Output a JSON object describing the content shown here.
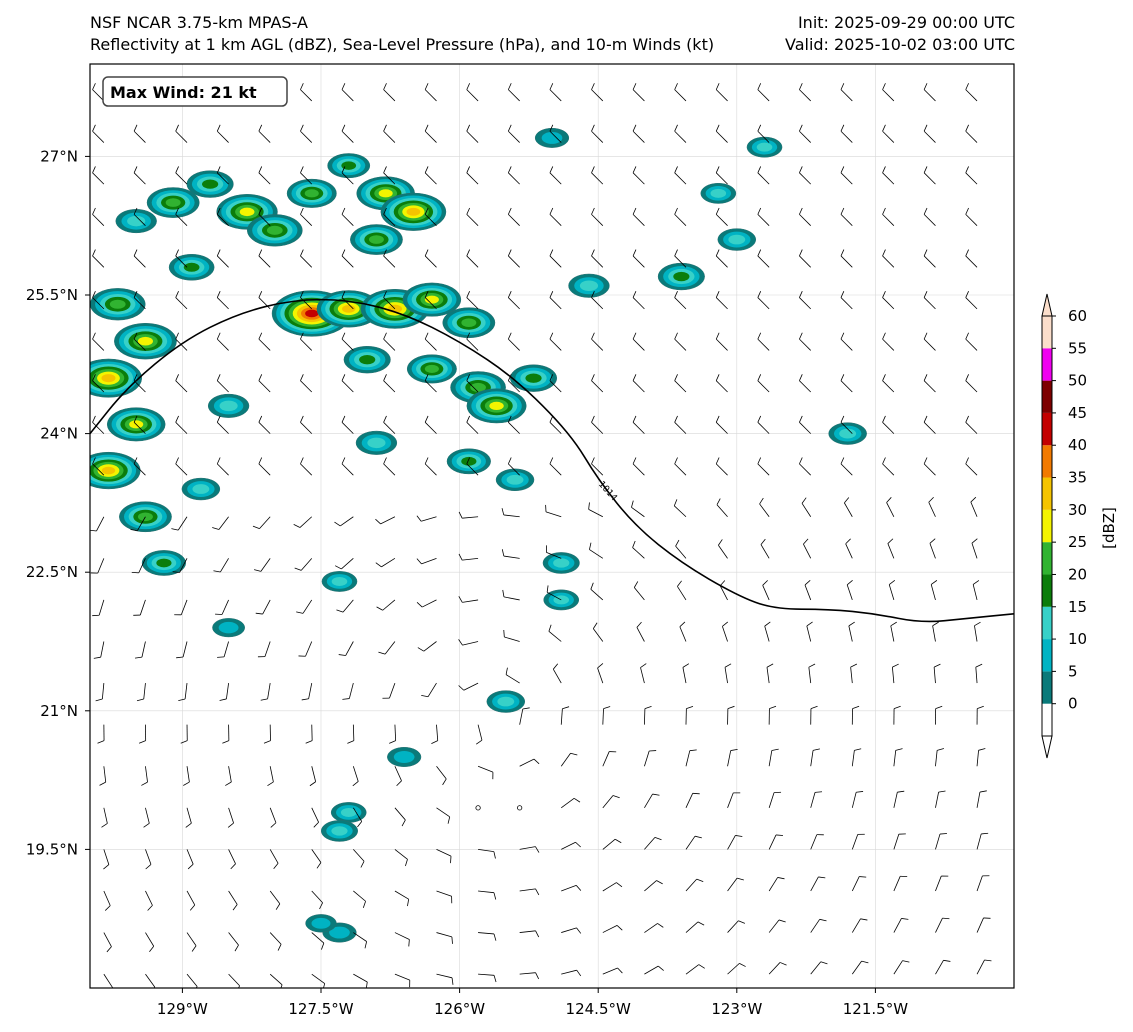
{
  "header": {
    "model": "NSF NCAR 3.75-km MPAS-A",
    "fields": "Reflectivity at 1 km AGL (dBZ), Sea-Level Pressure (hPa), and 10-m Winds (kt)",
    "init": "Init: 2025-09-29 00:00 UTC",
    "valid": "Valid: 2025-10-02 03:00 UTC"
  },
  "annotation": {
    "max_wind": "Max Wind: 21 kt"
  },
  "map": {
    "lon_range": [
      -130.0,
      -120.0
    ],
    "lat_range": [
      18.0,
      28.0
    ],
    "lon_ticks": [
      {
        "value": -129.0,
        "label": "129°W"
      },
      {
        "value": -127.5,
        "label": "127.5°W"
      },
      {
        "value": -126.0,
        "label": "126°W"
      },
      {
        "value": -124.5,
        "label": "124.5°W"
      },
      {
        "value": -123.0,
        "label": "123°W"
      },
      {
        "value": -121.5,
        "label": "121.5°W"
      }
    ],
    "lat_ticks": [
      {
        "value": 27.0,
        "label": "27°N"
      },
      {
        "value": 25.5,
        "label": "25.5°N"
      },
      {
        "value": 24.0,
        "label": "24°N"
      },
      {
        "value": 22.5,
        "label": "22.5°N"
      },
      {
        "value": 21.0,
        "label": "21°N"
      },
      {
        "value": 19.5,
        "label": "19.5°N"
      }
    ],
    "isobar": {
      "label": "1014",
      "points": [
        [
          -130.0,
          24.0
        ],
        [
          -129.6,
          24.5
        ],
        [
          -129.0,
          25.0
        ],
        [
          -128.4,
          25.3
        ],
        [
          -127.8,
          25.45
        ],
        [
          -127.2,
          25.45
        ],
        [
          -126.6,
          25.3
        ],
        [
          -126.0,
          25.0
        ],
        [
          -125.4,
          24.6
        ],
        [
          -124.8,
          24.0
        ],
        [
          -124.5,
          23.5
        ],
        [
          -124.1,
          23.0
        ],
        [
          -123.6,
          22.6
        ],
        [
          -123.0,
          22.25
        ],
        [
          -122.6,
          22.1
        ],
        [
          -122.0,
          22.1
        ],
        [
          -121.5,
          22.05
        ],
        [
          -121.0,
          21.95
        ],
        [
          -120.5,
          22.0
        ],
        [
          -120.0,
          22.05
        ]
      ]
    },
    "reflectivity_cells": [
      {
        "lon": -129.5,
        "lat": 26.3,
        "dbz": 14
      },
      {
        "lon": -129.1,
        "lat": 26.5,
        "dbz": 22
      },
      {
        "lon": -128.7,
        "lat": 26.7,
        "dbz": 18
      },
      {
        "lon": -128.3,
        "lat": 26.4,
        "dbz": 28
      },
      {
        "lon": -128.0,
        "lat": 26.2,
        "dbz": 24
      },
      {
        "lon": -127.6,
        "lat": 26.6,
        "dbz": 20
      },
      {
        "lon": -127.2,
        "lat": 26.9,
        "dbz": 15
      },
      {
        "lon": -126.8,
        "lat": 26.6,
        "dbz": 26
      },
      {
        "lon": -126.5,
        "lat": 26.4,
        "dbz": 31
      },
      {
        "lon": -126.9,
        "lat": 26.1,
        "dbz": 22
      },
      {
        "lon": -128.9,
        "lat": 25.8,
        "dbz": 17
      },
      {
        "lon": -129.7,
        "lat": 25.4,
        "dbz": 24
      },
      {
        "lon": -129.4,
        "lat": 25.0,
        "dbz": 29
      },
      {
        "lon": -129.8,
        "lat": 24.6,
        "dbz": 32
      },
      {
        "lon": -129.5,
        "lat": 24.1,
        "dbz": 26
      },
      {
        "lon": -129.8,
        "lat": 23.6,
        "dbz": 30
      },
      {
        "lon": -129.4,
        "lat": 23.1,
        "dbz": 22
      },
      {
        "lon": -129.2,
        "lat": 22.6,
        "dbz": 16
      },
      {
        "lon": -128.8,
        "lat": 23.4,
        "dbz": 12
      },
      {
        "lon": -128.5,
        "lat": 24.3,
        "dbz": 14
      },
      {
        "lon": -127.6,
        "lat": 25.3,
        "dbz": 41
      },
      {
        "lon": -127.2,
        "lat": 25.35,
        "dbz": 30
      },
      {
        "lon": -126.7,
        "lat": 25.35,
        "dbz": 33
      },
      {
        "lon": -126.3,
        "lat": 25.45,
        "dbz": 26
      },
      {
        "lon": -125.9,
        "lat": 25.2,
        "dbz": 22
      },
      {
        "lon": -127.0,
        "lat": 24.8,
        "dbz": 18
      },
      {
        "lon": -126.3,
        "lat": 24.7,
        "dbz": 20
      },
      {
        "lon": -125.8,
        "lat": 24.5,
        "dbz": 24
      },
      {
        "lon": -125.6,
        "lat": 24.3,
        "dbz": 27
      },
      {
        "lon": -125.2,
        "lat": 24.6,
        "dbz": 18
      },
      {
        "lon": -126.9,
        "lat": 23.9,
        "dbz": 14
      },
      {
        "lon": -125.9,
        "lat": 23.7,
        "dbz": 16
      },
      {
        "lon": -125.4,
        "lat": 23.5,
        "dbz": 12
      },
      {
        "lon": -124.6,
        "lat": 25.6,
        "dbz": 14
      },
      {
        "lon": -123.6,
        "lat": 25.7,
        "dbz": 18
      },
      {
        "lon": -123.0,
        "lat": 26.1,
        "dbz": 12
      },
      {
        "lon": -123.2,
        "lat": 26.6,
        "dbz": 10
      },
      {
        "lon": -122.7,
        "lat": 27.1,
        "dbz": 10
      },
      {
        "lon": -121.8,
        "lat": 24.0,
        "dbz": 12
      },
      {
        "lon": -124.9,
        "lat": 22.6,
        "dbz": 11
      },
      {
        "lon": -124.9,
        "lat": 22.2,
        "dbz": 10
      },
      {
        "lon": -125.5,
        "lat": 21.1,
        "dbz": 12
      },
      {
        "lon": -126.6,
        "lat": 20.5,
        "dbz": 9
      },
      {
        "lon": -127.2,
        "lat": 19.9,
        "dbz": 10
      },
      {
        "lon": -127.3,
        "lat": 19.7,
        "dbz": 11
      },
      {
        "lon": -127.3,
        "lat": 18.6,
        "dbz": 9
      },
      {
        "lon": -127.5,
        "lat": 18.7,
        "dbz": 7
      },
      {
        "lon": -128.5,
        "lat": 21.9,
        "dbz": 8
      },
      {
        "lon": -127.3,
        "lat": 22.4,
        "dbz": 10
      },
      {
        "lon": -125.0,
        "lat": 27.2,
        "dbz": 9
      }
    ]
  },
  "colorbar": {
    "label": "[dBZ]",
    "ticks": [
      "0",
      "5",
      "10",
      "15",
      "20",
      "25",
      "30",
      "35",
      "40",
      "45",
      "50",
      "55",
      "60"
    ],
    "colors": [
      "#0a7a7a",
      "#00b3c3",
      "#37d1c8",
      "#0b7d0b",
      "#31b331",
      "#f4f400",
      "#f5c400",
      "#f27a00",
      "#c30000",
      "#7d0000",
      "#f000f0",
      "#fbdecb"
    ],
    "min_extend_color": "#ffffff",
    "max_extend_color": "#fbdecb"
  }
}
